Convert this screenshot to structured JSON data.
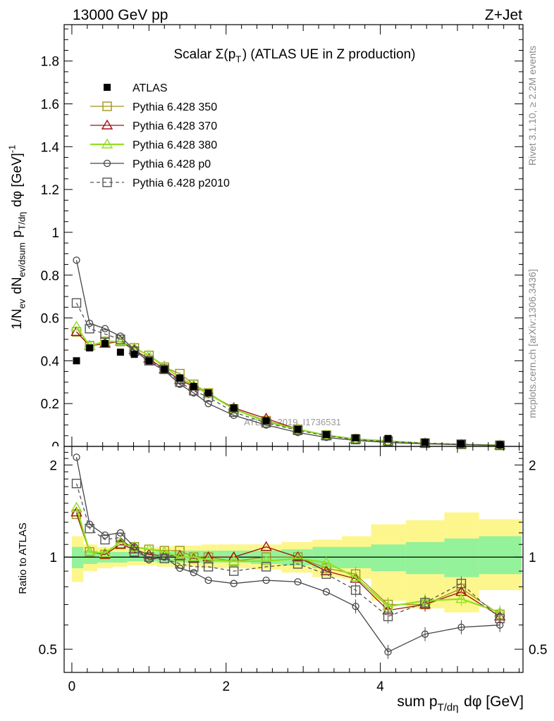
{
  "header": {
    "left_label": "13000 GeV pp",
    "right_label": "Z+Jet"
  },
  "plot_title": "Scalar Σ(p_T) (ATLAS UE in Z production)",
  "watermark": "ATLAS_2019_I1736531",
  "side_labels": {
    "rivet": "Rivet 3.1.10, ≥ 2.2M events",
    "mcplots": "mcplots.cern.ch [arXiv:1306.3436]"
  },
  "chart_data": [
    {
      "type": "line",
      "panel": "main",
      "ylabel": "1/N_ev dN_ev/dsum p_T/dη dφ [GeV]^-1",
      "xlim": [
        -0.1,
        5.85
      ],
      "ylim": [
        0,
        1.97
      ],
      "yticks": [
        0.2,
        0.4,
        0.6,
        0.8,
        1,
        1.2,
        1.4,
        1.6,
        1.8
      ],
      "ytick_labels": [
        "0.2",
        "0.4",
        "0.6",
        "0.8",
        "1",
        "1.2",
        "1.4",
        "1.6",
        "1.8"
      ],
      "x": [
        0.06,
        0.23,
        0.43,
        0.63,
        0.81,
        1.0,
        1.2,
        1.4,
        1.58,
        1.77,
        2.1,
        2.52,
        2.93,
        3.3,
        3.68,
        4.1,
        4.58,
        5.05,
        5.55
      ],
      "series": [
        {
          "name": "ATLAS",
          "marker": "filled-square",
          "color": "#000000",
          "values": [
            0.4,
            0.46,
            0.48,
            0.44,
            0.43,
            0.4,
            0.36,
            0.32,
            0.28,
            0.25,
            0.18,
            0.12,
            0.08,
            0.055,
            0.04,
            0.037,
            0.02,
            0.012,
            0.008
          ]
        },
        {
          "name": "Pythia 6.428 350",
          "marker": "open-square",
          "color": "#a09418",
          "values": [
            0.535,
            0.47,
            0.49,
            0.49,
            0.46,
            0.425,
            0.37,
            0.34,
            0.29,
            0.25,
            0.175,
            0.12,
            0.08,
            0.053,
            0.035,
            0.026,
            0.015,
            0.01,
            0.005
          ]
        },
        {
          "name": "Pythia 6.428 370",
          "marker": "open-triangle",
          "color": "#a01010",
          "values": [
            0.535,
            0.47,
            0.48,
            0.49,
            0.45,
            0.41,
            0.36,
            0.31,
            0.28,
            0.245,
            0.18,
            0.13,
            0.08,
            0.05,
            0.034,
            0.025,
            0.015,
            0.009,
            0.005
          ]
        },
        {
          "name": "Pythia 6.428 380",
          "marker": "open-triangle",
          "color": "#90e020",
          "values": [
            0.56,
            0.47,
            0.49,
            0.49,
            0.46,
            0.425,
            0.375,
            0.32,
            0.285,
            0.245,
            0.175,
            0.115,
            0.08,
            0.052,
            0.034,
            0.025,
            0.014,
            0.009,
            0.005
          ]
        },
        {
          "name": "Pythia 6.428 p0",
          "marker": "open-circle",
          "color": "#444444",
          "values": [
            0.87,
            0.575,
            0.55,
            0.515,
            0.45,
            0.395,
            0.355,
            0.29,
            0.25,
            0.2,
            0.145,
            0.1,
            0.065,
            0.042,
            0.028,
            0.018,
            0.012,
            0.008,
            0.005
          ]
        },
        {
          "name": "Pythia 6.428 p2010",
          "marker": "open-square",
          "color": "#555555",
          "dashed": true,
          "values": [
            0.67,
            0.55,
            0.525,
            0.5,
            0.445,
            0.4,
            0.36,
            0.3,
            0.26,
            0.23,
            0.16,
            0.11,
            0.075,
            0.05,
            0.032,
            0.023,
            0.015,
            0.01,
            0.005
          ]
        }
      ]
    },
    {
      "type": "line",
      "panel": "ratio",
      "ylabel": "Ratio to ATLAS",
      "xlabel": "sum p_T/dη dφ [GeV]",
      "xlim": [
        -0.1,
        5.85
      ],
      "ylim": [
        0.42,
        2.3
      ],
      "xticks": [
        0,
        2,
        4
      ],
      "xtick_labels": [
        "0",
        "2",
        "4"
      ],
      "yticks": [
        0.5,
        1,
        2
      ],
      "ytick_labels": [
        "0.5",
        "1",
        "2"
      ],
      "x_edges": [
        0,
        0.15,
        0.33,
        0.53,
        0.72,
        0.9,
        1.1,
        1.3,
        1.5,
        1.68,
        1.88,
        2.32,
        2.72,
        3.12,
        3.5,
        3.88,
        4.33,
        4.83,
        5.28,
        5.83
      ],
      "band_inner": [
        [
          0.92,
          1.08
        ],
        [
          0.95,
          1.05
        ],
        [
          0.96,
          1.04
        ],
        [
          0.96,
          1.04
        ],
        [
          0.97,
          1.04
        ],
        [
          0.97,
          1.04
        ],
        [
          0.96,
          1.04
        ],
        [
          0.96,
          1.05
        ],
        [
          0.96,
          1.05
        ],
        [
          0.96,
          1.05
        ],
        [
          0.96,
          1.05
        ],
        [
          0.95,
          1.05
        ],
        [
          0.94,
          1.06
        ],
        [
          0.92,
          1.08
        ],
        [
          0.92,
          1.08
        ],
        [
          0.9,
          1.1
        ],
        [
          0.88,
          1.12
        ],
        [
          0.86,
          1.15
        ],
        [
          0.88,
          1.17
        ]
      ],
      "band_outer": [
        [
          0.83,
          1.17
        ],
        [
          0.9,
          1.1
        ],
        [
          0.92,
          1.08
        ],
        [
          0.93,
          1.07
        ],
        [
          0.94,
          1.07
        ],
        [
          0.94,
          1.08
        ],
        [
          0.93,
          1.08
        ],
        [
          0.93,
          1.09
        ],
        [
          0.93,
          1.09
        ],
        [
          0.92,
          1.1
        ],
        [
          0.92,
          1.1
        ],
        [
          0.91,
          1.1
        ],
        [
          0.89,
          1.12
        ],
        [
          0.86,
          1.14
        ],
        [
          0.85,
          1.17
        ],
        [
          0.72,
          1.28
        ],
        [
          0.68,
          1.32
        ],
        [
          0.66,
          1.4
        ],
        [
          0.78,
          1.33
        ]
      ],
      "x": [
        0.06,
        0.23,
        0.43,
        0.63,
        0.81,
        1.0,
        1.2,
        1.4,
        1.58,
        1.77,
        2.1,
        2.52,
        2.93,
        3.3,
        3.68,
        4.1,
        4.58,
        5.05,
        5.55
      ],
      "series": [
        {
          "name": "Pythia 6.428 350",
          "color": "#a09418",
          "values": [
            1.38,
            1.04,
            1.02,
            1.1,
            1.08,
            1.06,
            1.05,
            1.05,
            1.0,
            1.0,
            0.97,
            1.0,
            1.0,
            0.92,
            0.88,
            0.7,
            0.7,
            0.79,
            0.65
          ]
        },
        {
          "name": "Pythia 6.428 370",
          "color": "#a01010",
          "values": [
            1.4,
            1.04,
            1.02,
            1.1,
            1.06,
            1.02,
            1.01,
            1.01,
            0.99,
            1.0,
            1.0,
            1.08,
            1.0,
            0.9,
            0.85,
            0.67,
            0.7,
            0.77,
            0.64
          ]
        },
        {
          "name": "Pythia 6.428 380",
          "color": "#90e020",
          "values": [
            1.45,
            1.04,
            1.03,
            1.12,
            1.08,
            1.06,
            1.04,
            1.0,
            1.0,
            0.98,
            0.97,
            0.97,
            0.99,
            0.96,
            0.86,
            0.69,
            0.72,
            0.73,
            0.66
          ]
        },
        {
          "name": "Pythia 6.428 p0",
          "color": "#444444",
          "values": [
            2.12,
            1.28,
            1.18,
            1.2,
            1.08,
            0.98,
            1.0,
            0.92,
            0.89,
            0.84,
            0.82,
            0.84,
            0.83,
            0.77,
            0.69,
            0.49,
            0.56,
            0.59,
            0.6
          ]
        },
        {
          "name": "Pythia 6.428 p2010",
          "color": "#555555",
          "dashed": true,
          "values": [
            1.74,
            1.24,
            1.14,
            1.16,
            1.04,
            1.0,
            0.99,
            0.95,
            0.93,
            0.93,
            0.9,
            0.93,
            0.95,
            0.88,
            0.78,
            0.64,
            0.71,
            0.82,
            0.63
          ]
        }
      ]
    }
  ]
}
